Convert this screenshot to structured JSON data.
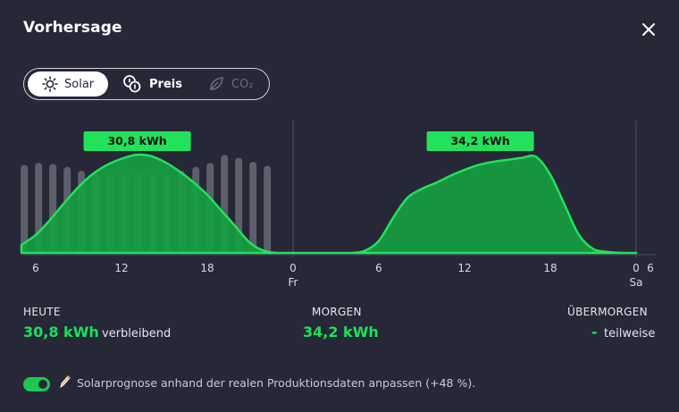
{
  "header": {
    "title": "Vorhersage"
  },
  "tabs": [
    {
      "label": "Solar",
      "icon": "sun-icon",
      "active": true
    },
    {
      "label": "Preis",
      "icon": "coins-icon",
      "active": false
    },
    {
      "label": "CO₂",
      "icon": "leaf-icon",
      "active": false,
      "disabled": true
    }
  ],
  "chart_data": {
    "type": "area",
    "x_tick_labels": [
      "6",
      "12",
      "18",
      "0",
      "6",
      "12",
      "18",
      "0",
      "6"
    ],
    "day_labels": [
      "Fr",
      "Sa"
    ],
    "annotations": [
      "30,8 kWh",
      "34,2 kWh"
    ],
    "series": [
      {
        "kind": "area",
        "x_hours": [
          5,
          6,
          7,
          8,
          9,
          10,
          11,
          12,
          13,
          14,
          15,
          16,
          17,
          18,
          19,
          20,
          21,
          22,
          23,
          24,
          25,
          26,
          27,
          28,
          29,
          30,
          31,
          32,
          33,
          34,
          35,
          36,
          37,
          38,
          39,
          40,
          41,
          42,
          43,
          44,
          45,
          46,
          47,
          48
        ],
        "values": [
          0.08,
          0.18,
          0.33,
          0.5,
          0.66,
          0.79,
          0.88,
          0.94,
          0.98,
          0.97,
          0.91,
          0.82,
          0.71,
          0.58,
          0.42,
          0.26,
          0.1,
          0.02,
          0.0,
          0.0,
          0.0,
          0.0,
          0.0,
          0.0,
          0.02,
          0.12,
          0.35,
          0.55,
          0.64,
          0.7,
          0.77,
          0.83,
          0.88,
          0.91,
          0.93,
          0.95,
          0.96,
          0.78,
          0.48,
          0.18,
          0.04,
          0.01,
          0.0,
          0.0
        ]
      },
      {
        "kind": "bars",
        "x_hours": [
          5.2,
          6.2,
          7.2,
          8.2,
          9.2,
          10.2,
          11.2,
          12.2,
          13.2,
          14.2,
          15.2,
          16.2,
          17.2,
          18.2,
          19.2,
          20.2,
          21.2,
          22.2
        ],
        "values": [
          0.88,
          0.9,
          0.89,
          0.86,
          0.82,
          0.8,
          0.78,
          0.78,
          0.79,
          0.78,
          0.79,
          0.82,
          0.86,
          0.9,
          0.98,
          0.95,
          0.91,
          0.87
        ]
      }
    ]
  },
  "summary": {
    "today_label": "HEUTE",
    "today_value": "30,8 kWh",
    "today_suffix": "verbleibend",
    "tomorrow_label": "MORGEN",
    "tomorrow_value": "34,2 kWh",
    "overmorrow_label": "ÜBERMORGEN",
    "overmorrow_value": "-",
    "overmorrow_suffix": "teilweise"
  },
  "footer": {
    "toggle_on": true,
    "note": "Solarprognose anhand der realen Produktionsdaten anpassen (+48 %)."
  },
  "colors": {
    "accent": "#1ee05a",
    "area_fill": "#15a040",
    "background": "#262838"
  }
}
